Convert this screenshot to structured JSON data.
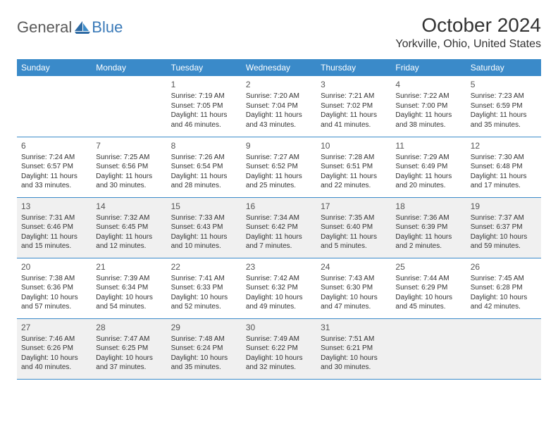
{
  "colors": {
    "header_bg": "#3a8ac9",
    "border": "#3a8ac9",
    "page_bg": "#ffffff",
    "shade_bg": "#f0f0f0",
    "text": "#333333",
    "logo_gray": "#5a5a5a",
    "logo_blue": "#3a7ab8"
  },
  "logo": {
    "part1": "General",
    "part2": "Blue"
  },
  "title": "October 2024",
  "location": "Yorkville, Ohio, United States",
  "day_headers": [
    "Sunday",
    "Monday",
    "Tuesday",
    "Wednesday",
    "Thursday",
    "Friday",
    "Saturday"
  ],
  "weeks": [
    {
      "shaded": false,
      "days": [
        null,
        null,
        {
          "num": "1",
          "sunrise": "Sunrise: 7:19 AM",
          "sunset": "Sunset: 7:05 PM",
          "daylight": "Daylight: 11 hours and 46 minutes."
        },
        {
          "num": "2",
          "sunrise": "Sunrise: 7:20 AM",
          "sunset": "Sunset: 7:04 PM",
          "daylight": "Daylight: 11 hours and 43 minutes."
        },
        {
          "num": "3",
          "sunrise": "Sunrise: 7:21 AM",
          "sunset": "Sunset: 7:02 PM",
          "daylight": "Daylight: 11 hours and 41 minutes."
        },
        {
          "num": "4",
          "sunrise": "Sunrise: 7:22 AM",
          "sunset": "Sunset: 7:00 PM",
          "daylight": "Daylight: 11 hours and 38 minutes."
        },
        {
          "num": "5",
          "sunrise": "Sunrise: 7:23 AM",
          "sunset": "Sunset: 6:59 PM",
          "daylight": "Daylight: 11 hours and 35 minutes."
        }
      ]
    },
    {
      "shaded": false,
      "days": [
        {
          "num": "6",
          "sunrise": "Sunrise: 7:24 AM",
          "sunset": "Sunset: 6:57 PM",
          "daylight": "Daylight: 11 hours and 33 minutes."
        },
        {
          "num": "7",
          "sunrise": "Sunrise: 7:25 AM",
          "sunset": "Sunset: 6:56 PM",
          "daylight": "Daylight: 11 hours and 30 minutes."
        },
        {
          "num": "8",
          "sunrise": "Sunrise: 7:26 AM",
          "sunset": "Sunset: 6:54 PM",
          "daylight": "Daylight: 11 hours and 28 minutes."
        },
        {
          "num": "9",
          "sunrise": "Sunrise: 7:27 AM",
          "sunset": "Sunset: 6:52 PM",
          "daylight": "Daylight: 11 hours and 25 minutes."
        },
        {
          "num": "10",
          "sunrise": "Sunrise: 7:28 AM",
          "sunset": "Sunset: 6:51 PM",
          "daylight": "Daylight: 11 hours and 22 minutes."
        },
        {
          "num": "11",
          "sunrise": "Sunrise: 7:29 AM",
          "sunset": "Sunset: 6:49 PM",
          "daylight": "Daylight: 11 hours and 20 minutes."
        },
        {
          "num": "12",
          "sunrise": "Sunrise: 7:30 AM",
          "sunset": "Sunset: 6:48 PM",
          "daylight": "Daylight: 11 hours and 17 minutes."
        }
      ]
    },
    {
      "shaded": true,
      "days": [
        {
          "num": "13",
          "sunrise": "Sunrise: 7:31 AM",
          "sunset": "Sunset: 6:46 PM",
          "daylight": "Daylight: 11 hours and 15 minutes."
        },
        {
          "num": "14",
          "sunrise": "Sunrise: 7:32 AM",
          "sunset": "Sunset: 6:45 PM",
          "daylight": "Daylight: 11 hours and 12 minutes."
        },
        {
          "num": "15",
          "sunrise": "Sunrise: 7:33 AM",
          "sunset": "Sunset: 6:43 PM",
          "daylight": "Daylight: 11 hours and 10 minutes."
        },
        {
          "num": "16",
          "sunrise": "Sunrise: 7:34 AM",
          "sunset": "Sunset: 6:42 PM",
          "daylight": "Daylight: 11 hours and 7 minutes."
        },
        {
          "num": "17",
          "sunrise": "Sunrise: 7:35 AM",
          "sunset": "Sunset: 6:40 PM",
          "daylight": "Daylight: 11 hours and 5 minutes."
        },
        {
          "num": "18",
          "sunrise": "Sunrise: 7:36 AM",
          "sunset": "Sunset: 6:39 PM",
          "daylight": "Daylight: 11 hours and 2 minutes."
        },
        {
          "num": "19",
          "sunrise": "Sunrise: 7:37 AM",
          "sunset": "Sunset: 6:37 PM",
          "daylight": "Daylight: 10 hours and 59 minutes."
        }
      ]
    },
    {
      "shaded": false,
      "days": [
        {
          "num": "20",
          "sunrise": "Sunrise: 7:38 AM",
          "sunset": "Sunset: 6:36 PM",
          "daylight": "Daylight: 10 hours and 57 minutes."
        },
        {
          "num": "21",
          "sunrise": "Sunrise: 7:39 AM",
          "sunset": "Sunset: 6:34 PM",
          "daylight": "Daylight: 10 hours and 54 minutes."
        },
        {
          "num": "22",
          "sunrise": "Sunrise: 7:41 AM",
          "sunset": "Sunset: 6:33 PM",
          "daylight": "Daylight: 10 hours and 52 minutes."
        },
        {
          "num": "23",
          "sunrise": "Sunrise: 7:42 AM",
          "sunset": "Sunset: 6:32 PM",
          "daylight": "Daylight: 10 hours and 49 minutes."
        },
        {
          "num": "24",
          "sunrise": "Sunrise: 7:43 AM",
          "sunset": "Sunset: 6:30 PM",
          "daylight": "Daylight: 10 hours and 47 minutes."
        },
        {
          "num": "25",
          "sunrise": "Sunrise: 7:44 AM",
          "sunset": "Sunset: 6:29 PM",
          "daylight": "Daylight: 10 hours and 45 minutes."
        },
        {
          "num": "26",
          "sunrise": "Sunrise: 7:45 AM",
          "sunset": "Sunset: 6:28 PM",
          "daylight": "Daylight: 10 hours and 42 minutes."
        }
      ]
    },
    {
      "shaded": true,
      "days": [
        {
          "num": "27",
          "sunrise": "Sunrise: 7:46 AM",
          "sunset": "Sunset: 6:26 PM",
          "daylight": "Daylight: 10 hours and 40 minutes."
        },
        {
          "num": "28",
          "sunrise": "Sunrise: 7:47 AM",
          "sunset": "Sunset: 6:25 PM",
          "daylight": "Daylight: 10 hours and 37 minutes."
        },
        {
          "num": "29",
          "sunrise": "Sunrise: 7:48 AM",
          "sunset": "Sunset: 6:24 PM",
          "daylight": "Daylight: 10 hours and 35 minutes."
        },
        {
          "num": "30",
          "sunrise": "Sunrise: 7:49 AM",
          "sunset": "Sunset: 6:22 PM",
          "daylight": "Daylight: 10 hours and 32 minutes."
        },
        {
          "num": "31",
          "sunrise": "Sunrise: 7:51 AM",
          "sunset": "Sunset: 6:21 PM",
          "daylight": "Daylight: 10 hours and 30 minutes."
        },
        null,
        null
      ]
    }
  ]
}
